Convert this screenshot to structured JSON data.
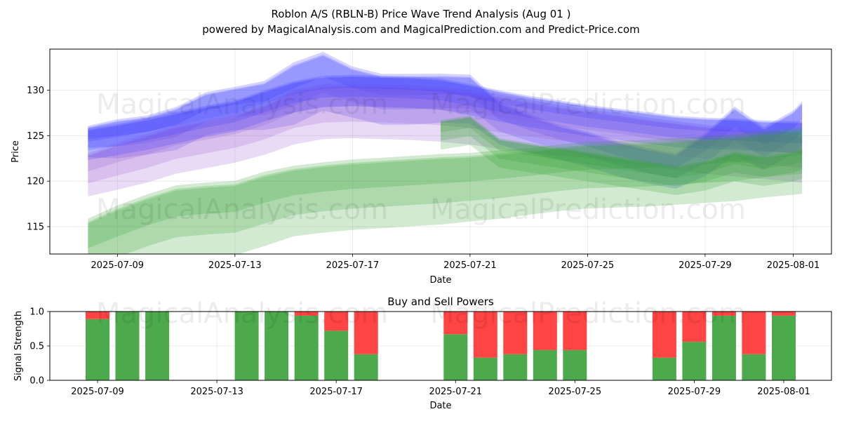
{
  "title_line1": "Roblon A/S (RBLN-B) Price Wave Trend Analysis (Aug 01 )",
  "title_line2": "powered by MagicalAnalysis.com and MagicalPrediction.com and Predict-Price.com",
  "watermarks": [
    "MagicalAnalysis.com",
    "MagicalPrediction.com"
  ],
  "colors": {
    "blue": "#3b3bff",
    "purple": "#9b59d0",
    "green": "#2e9e2e",
    "buy": "#4caa4c",
    "sell": "#ff4444"
  },
  "chart_data": [
    {
      "type": "area",
      "title": "",
      "xlabel": "Date",
      "ylabel": "Price",
      "ylim": [
        112,
        134.5
      ],
      "xlim": [
        -2.3,
        24.3
      ],
      "x_ticks": [
        {
          "pos": 0,
          "label": "2025-07-09"
        },
        {
          "pos": 4,
          "label": "2025-07-13"
        },
        {
          "pos": 8,
          "label": "2025-07-17"
        },
        {
          "pos": 12,
          "label": "2025-07-21"
        },
        {
          "pos": 16,
          "label": "2025-07-25"
        },
        {
          "pos": 20,
          "label": "2025-07-29"
        },
        {
          "pos": 23,
          "label": "2025-08-01"
        }
      ],
      "y_ticks": [
        115,
        120,
        125,
        130
      ],
      "grid": true,
      "series": [
        {
          "name": "blue-price-bands",
          "color": "blue",
          "x": [
            -1,
            0,
            1,
            2,
            3,
            4,
            5,
            6,
            7,
            8,
            9,
            10,
            11,
            12,
            13,
            14,
            15,
            16,
            17,
            18,
            19,
            20,
            21,
            22,
            23,
            23.3
          ],
          "values": [
            124.8,
            125.2,
            125.6,
            126.4,
            128.0,
            128.6,
            129.0,
            130.5,
            131.8,
            130.5,
            129.7,
            129.7,
            129.8,
            129.7,
            127.0,
            125.8,
            124.8,
            124.0,
            123.0,
            122.2,
            121.6,
            123.5,
            126.2,
            124.2,
            126.0,
            127.0
          ],
          "band": [
            1.6,
            2.0,
            2.0,
            2.2,
            2.2,
            2.2,
            2.5,
            3.2,
            3.0,
            2.6,
            2.6,
            2.6,
            2.5,
            2.5,
            2.2,
            2.0,
            1.8,
            1.8,
            1.8,
            1.8,
            1.8,
            2.2,
            2.5,
            2.2,
            2.2,
            2.2
          ]
        },
        {
          "name": "purple-trend",
          "color": "purple",
          "x": [
            -1,
            0,
            1,
            2,
            3,
            4,
            5,
            6,
            7,
            8,
            9,
            10,
            11,
            12,
            13,
            14,
            15,
            16,
            17,
            18,
            19,
            20,
            21,
            22,
            23,
            23.3
          ],
          "values": [
            121.3,
            122.3,
            123.2,
            124.2,
            124.8,
            125.4,
            126.4,
            127.8,
            128.4,
            128.5,
            128.4,
            128.3,
            128.1,
            127.8,
            127.3,
            126.8,
            126.3,
            125.9,
            125.5,
            125.0,
            124.6,
            124.2,
            123.9,
            123.6,
            123.3,
            123.2
          ],
          "band": [
            2.2,
            2.4,
            2.5,
            2.5,
            2.5,
            2.5,
            2.6,
            2.8,
            2.8,
            2.8,
            2.8,
            2.8,
            2.8,
            2.8,
            2.8,
            2.7,
            2.6,
            2.5,
            2.5,
            2.5,
            2.5,
            2.5,
            2.5,
            2.5,
            2.5,
            2.5
          ]
        },
        {
          "name": "blue-trend",
          "color": "blue",
          "x": [
            -1,
            0,
            1,
            2,
            3,
            4,
            5,
            6,
            7,
            8,
            9,
            10,
            11,
            12,
            13,
            14,
            15,
            16,
            17,
            18,
            19,
            20,
            21,
            22,
            23,
            23.3
          ],
          "values": [
            124.5,
            125.0,
            125.6,
            126.3,
            127.0,
            127.6,
            128.7,
            129.7,
            130.3,
            130.4,
            130.3,
            130.2,
            130.0,
            129.4,
            128.7,
            128.1,
            127.6,
            127.1,
            126.7,
            126.3,
            125.9,
            125.7,
            125.6,
            125.4,
            125.3,
            125.3
          ],
          "band": [
            1.6,
            1.6,
            1.6,
            1.6,
            1.6,
            1.6,
            1.6,
            1.6,
            1.6,
            1.6,
            1.6,
            1.6,
            1.6,
            1.6,
            1.6,
            1.6,
            1.6,
            1.6,
            1.6,
            1.6,
            1.6,
            1.6,
            1.6,
            1.6,
            1.6,
            1.6
          ]
        },
        {
          "name": "green-trend",
          "color": "green",
          "x": [
            -1,
            0,
            1,
            2,
            3,
            4,
            5,
            6,
            7,
            8,
            9,
            10,
            11,
            12,
            13,
            14,
            15,
            16,
            17,
            18,
            19,
            20,
            21,
            22,
            23,
            23.3
          ],
          "values": [
            113.0,
            114.3,
            115.5,
            116.5,
            116.8,
            117.0,
            118.0,
            118.8,
            119.2,
            119.5,
            119.7,
            119.9,
            120.1,
            120.3,
            120.6,
            120.9,
            121.3,
            121.6,
            121.7,
            121.8,
            122.0,
            122.2,
            122.4,
            122.8,
            123.1,
            123.2
          ],
          "band": [
            3.6,
            3.8,
            3.8,
            3.8,
            3.8,
            3.8,
            3.8,
            3.6,
            3.6,
            3.6,
            3.6,
            3.6,
            3.6,
            3.5,
            3.5,
            3.4,
            3.4,
            3.4,
            3.4,
            3.4,
            3.4,
            3.4,
            3.4,
            3.4,
            3.4,
            3.4
          ]
        },
        {
          "name": "green-price-bands",
          "color": "green",
          "x": [
            11,
            12,
            13,
            14,
            15,
            16,
            17,
            18,
            19,
            20,
            21,
            22,
            23,
            23.3
          ],
          "values": [
            125.5,
            126.0,
            123.5,
            123.0,
            122.5,
            122.0,
            121.5,
            121.0,
            120.5,
            121.0,
            122.0,
            121.5,
            122.0,
            122.3
          ],
          "band": [
            1.5,
            1.5,
            1.5,
            1.5,
            1.5,
            1.5,
            1.5,
            1.5,
            1.5,
            1.5,
            1.5,
            1.5,
            1.5,
            1.5
          ]
        }
      ]
    },
    {
      "type": "bar",
      "title": "Buy and Sell Powers",
      "xlabel": "Date",
      "ylabel": "Signal Strength",
      "ylim": [
        0,
        1.0
      ],
      "xlim": [
        -1.6,
        24.6
      ],
      "x_ticks": [
        {
          "pos": 0,
          "label": "2025-07-09"
        },
        {
          "pos": 4,
          "label": "2025-07-13"
        },
        {
          "pos": 8,
          "label": "2025-07-17"
        },
        {
          "pos": 12,
          "label": "2025-07-21"
        },
        {
          "pos": 16,
          "label": "2025-07-25"
        },
        {
          "pos": 20,
          "label": "2025-07-29"
        },
        {
          "pos": 23,
          "label": "2025-08-01"
        }
      ],
      "y_ticks": [
        {
          "value": 0.0,
          "label": "0.0"
        },
        {
          "value": 0.5,
          "label": "0.5"
        },
        {
          "value": 1.0,
          "label": "1.0"
        }
      ],
      "grid": true,
      "series": [
        {
          "name": "Buy",
          "color": "buy",
          "x": [
            0,
            1,
            2,
            5,
            6,
            7,
            8,
            9,
            12,
            13,
            14,
            15,
            16,
            19,
            20,
            21,
            22,
            23
          ],
          "values": [
            0.89,
            1.0,
            1.0,
            1.0,
            1.0,
            0.94,
            0.72,
            0.38,
            0.67,
            0.33,
            0.38,
            0.44,
            0.44,
            0.33,
            0.56,
            0.94,
            0.38,
            0.94
          ]
        },
        {
          "name": "Sell",
          "color": "sell",
          "x": [
            0,
            1,
            2,
            5,
            6,
            7,
            8,
            9,
            12,
            13,
            14,
            15,
            16,
            19,
            20,
            21,
            22,
            23
          ],
          "values": [
            0.11,
            0.0,
            0.0,
            0.0,
            0.0,
            0.06,
            0.28,
            0.62,
            0.33,
            0.67,
            0.62,
            0.56,
            0.56,
            0.67,
            0.44,
            0.06,
            0.62,
            0.06
          ]
        }
      ]
    }
  ]
}
